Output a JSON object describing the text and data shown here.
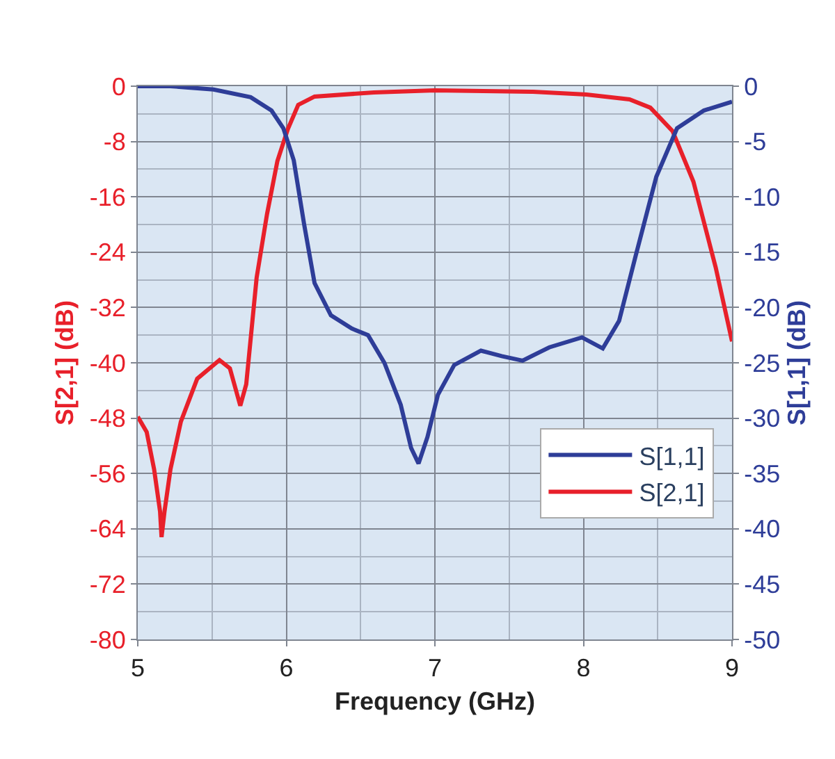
{
  "chart_data": {
    "type": "line",
    "xlabel": "Frequency (GHz)",
    "ylabel": "S[2,1] (dB)",
    "y2label": "S[1,1] (dB)",
    "xlim": [
      5,
      9
    ],
    "xticks": [
      5,
      6,
      7,
      8,
      9
    ],
    "ylim": [
      -80,
      0
    ],
    "yticks": [
      -80,
      -72,
      -64,
      -56,
      -48,
      -40,
      -32,
      -24,
      -16,
      -8,
      0
    ],
    "y2lim": [
      -50,
      0
    ],
    "y2ticks": [
      -50,
      -45,
      -40,
      -35,
      -30,
      -25,
      -20,
      -15,
      -10,
      -5,
      0
    ],
    "grid": true,
    "legend": "right",
    "marker": "none",
    "line_style": "solid",
    "series": [
      {
        "name": "S[1,1]",
        "color": "#2e3d98",
        "axis": "y2",
        "x": [
          5.0,
          5.22,
          5.51,
          5.76,
          5.9,
          5.98,
          6.05,
          6.12,
          6.19,
          6.3,
          6.44,
          6.55,
          6.66,
          6.77,
          6.84,
          6.89,
          6.95,
          7.02,
          7.13,
          7.31,
          7.45,
          7.59,
          7.77,
          7.99,
          8.13,
          8.24,
          8.35,
          8.49,
          8.63,
          8.81,
          9.0
        ],
        "values": [
          0,
          0,
          -0.3,
          -1.0,
          -2.2,
          -3.8,
          -6.7,
          -12.5,
          -17.8,
          -20.7,
          -21.9,
          -22.5,
          -25.0,
          -28.8,
          -32.7,
          -34.1,
          -31.7,
          -27.9,
          -25.2,
          -23.9,
          -24.4,
          -24.8,
          -23.6,
          -22.7,
          -23.7,
          -21.2,
          -15.4,
          -8.2,
          -3.8,
          -2.2,
          -1.4
        ]
      },
      {
        "name": "S[2,1]",
        "color": "#e8202a",
        "x": [
          5.0,
          5.06,
          5.11,
          5.15,
          5.16,
          5.18,
          5.22,
          5.29,
          5.4,
          5.55,
          5.62,
          5.69,
          5.73,
          5.8,
          5.87,
          5.94,
          6.01,
          6.08,
          6.19,
          6.59,
          7.0,
          7.66,
          8.02,
          8.31,
          8.45,
          8.6,
          8.74,
          8.89,
          9.0
        ],
        "values": [
          -47.8,
          -50,
          -55.4,
          -61.5,
          -65.2,
          -61.5,
          -55.4,
          -48.5,
          -42.3,
          -39.6,
          -40.8,
          -46.2,
          -43.1,
          -27.7,
          -18.5,
          -10.8,
          -6.2,
          -2.7,
          -1.5,
          -0.9,
          -0.6,
          -0.8,
          -1.2,
          -1.9,
          -3.1,
          -6.5,
          -13.8,
          -26.2,
          -36.9
        ]
      }
    ]
  }
}
